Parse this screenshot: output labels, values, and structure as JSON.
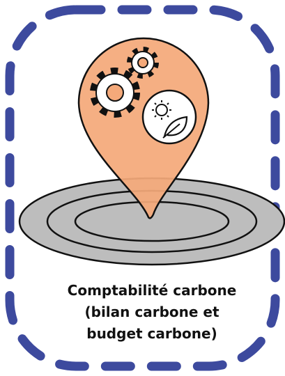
{
  "label": {
    "lines": [
      "Comptabilité carbone",
      "(bilan carbone et",
      "budget carbone)"
    ]
  }
}
